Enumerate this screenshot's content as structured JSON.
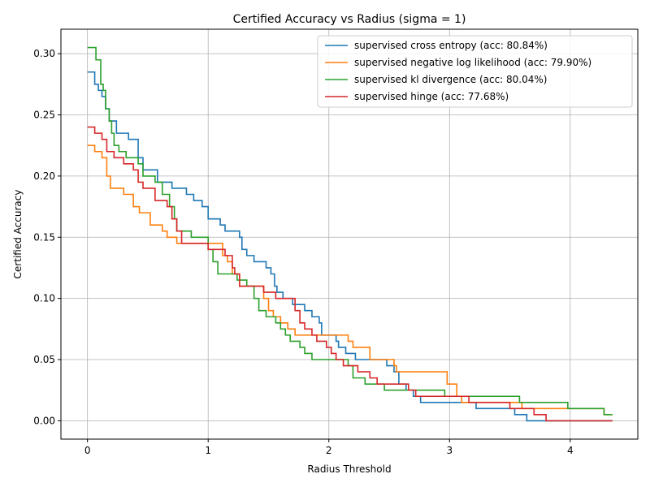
{
  "chart_data": {
    "type": "line",
    "title": "Certified Accuracy vs Radius (sigma = 1)",
    "xlabel": "Radius Threshold",
    "ylabel": "Certified Accuracy",
    "xlim": [
      -0.22,
      4.56
    ],
    "ylim": [
      -0.015,
      0.32
    ],
    "xticks": [
      0,
      1,
      2,
      3,
      4
    ],
    "xtick_labels": [
      "0",
      "1",
      "2",
      "3",
      "4"
    ],
    "yticks": [
      0.0,
      0.05,
      0.1,
      0.15,
      0.2,
      0.25,
      0.3
    ],
    "ytick_labels": [
      "0.00",
      "0.05",
      "0.10",
      "0.15",
      "0.20",
      "0.25",
      "0.30"
    ],
    "grid": true,
    "legend_position": "top-right",
    "series": [
      {
        "name": "supervised cross entropy (acc: 80.84%)",
        "color": "#1f77b4",
        "points": [
          [
            0,
            0.285
          ],
          [
            0.03,
            0.285
          ],
          [
            0.06,
            0.275
          ],
          [
            0.09,
            0.27
          ],
          [
            0.12,
            0.265
          ],
          [
            0.15,
            0.255
          ],
          [
            0.18,
            0.245
          ],
          [
            0.24,
            0.235
          ],
          [
            0.34,
            0.23
          ],
          [
            0.42,
            0.215
          ],
          [
            0.46,
            0.205
          ],
          [
            0.58,
            0.195
          ],
          [
            0.7,
            0.19
          ],
          [
            0.82,
            0.185
          ],
          [
            0.88,
            0.18
          ],
          [
            0.95,
            0.175
          ],
          [
            1.0,
            0.165
          ],
          [
            1.1,
            0.16
          ],
          [
            1.14,
            0.155
          ],
          [
            1.26,
            0.15
          ],
          [
            1.28,
            0.14
          ],
          [
            1.32,
            0.135
          ],
          [
            1.38,
            0.13
          ],
          [
            1.48,
            0.125
          ],
          [
            1.52,
            0.12
          ],
          [
            1.55,
            0.11
          ],
          [
            1.57,
            0.105
          ],
          [
            1.62,
            0.1
          ],
          [
            1.7,
            0.095
          ],
          [
            1.8,
            0.09
          ],
          [
            1.86,
            0.085
          ],
          [
            1.92,
            0.08
          ],
          [
            1.94,
            0.07
          ],
          [
            2.06,
            0.065
          ],
          [
            2.08,
            0.06
          ],
          [
            2.14,
            0.055
          ],
          [
            2.22,
            0.05
          ],
          [
            2.48,
            0.045
          ],
          [
            2.54,
            0.04
          ],
          [
            2.58,
            0.03
          ],
          [
            2.64,
            0.025
          ],
          [
            2.7,
            0.02
          ],
          [
            2.76,
            0.015
          ],
          [
            3.1,
            0.015
          ],
          [
            3.22,
            0.01
          ],
          [
            3.48,
            0.01
          ],
          [
            3.54,
            0.005
          ],
          [
            3.64,
            0.0
          ],
          [
            4.35,
            0.0
          ]
        ]
      },
      {
        "name": "supervised negative log likelihood (acc: 79.90%)",
        "color": "#ff7f0e",
        "points": [
          [
            0,
            0.225
          ],
          [
            0.06,
            0.22
          ],
          [
            0.12,
            0.215
          ],
          [
            0.16,
            0.2
          ],
          [
            0.19,
            0.19
          ],
          [
            0.3,
            0.185
          ],
          [
            0.38,
            0.175
          ],
          [
            0.43,
            0.17
          ],
          [
            0.52,
            0.16
          ],
          [
            0.62,
            0.155
          ],
          [
            0.66,
            0.15
          ],
          [
            0.74,
            0.145
          ],
          [
            0.98,
            0.145
          ],
          [
            1.12,
            0.135
          ],
          [
            1.16,
            0.13
          ],
          [
            1.2,
            0.12
          ],
          [
            1.26,
            0.11
          ],
          [
            1.46,
            0.1
          ],
          [
            1.5,
            0.09
          ],
          [
            1.54,
            0.085
          ],
          [
            1.6,
            0.08
          ],
          [
            1.66,
            0.075
          ],
          [
            1.72,
            0.07
          ],
          [
            2.12,
            0.07
          ],
          [
            2.16,
            0.065
          ],
          [
            2.2,
            0.06
          ],
          [
            2.34,
            0.05
          ],
          [
            2.54,
            0.045
          ],
          [
            2.56,
            0.04
          ],
          [
            2.94,
            0.04
          ],
          [
            2.98,
            0.03
          ],
          [
            3.06,
            0.02
          ],
          [
            3.1,
            0.015
          ],
          [
            3.56,
            0.015
          ],
          [
            3.6,
            0.01
          ],
          [
            4.26,
            0.01
          ],
          [
            4.28,
            0.005
          ],
          [
            4.35,
            0.005
          ]
        ]
      },
      {
        "name": "supervised kl divergence (acc: 80.04%)",
        "color": "#2ca02c",
        "points": [
          [
            0,
            0.305
          ],
          [
            0.05,
            0.305
          ],
          [
            0.07,
            0.295
          ],
          [
            0.11,
            0.275
          ],
          [
            0.13,
            0.27
          ],
          [
            0.15,
            0.255
          ],
          [
            0.18,
            0.245
          ],
          [
            0.2,
            0.235
          ],
          [
            0.22,
            0.225
          ],
          [
            0.26,
            0.22
          ],
          [
            0.32,
            0.215
          ],
          [
            0.42,
            0.21
          ],
          [
            0.46,
            0.2
          ],
          [
            0.56,
            0.195
          ],
          [
            0.62,
            0.185
          ],
          [
            0.68,
            0.175
          ],
          [
            0.72,
            0.165
          ],
          [
            0.74,
            0.155
          ],
          [
            0.86,
            0.15
          ],
          [
            1.0,
            0.14
          ],
          [
            1.04,
            0.13
          ],
          [
            1.08,
            0.12
          ],
          [
            1.24,
            0.115
          ],
          [
            1.32,
            0.11
          ],
          [
            1.38,
            0.1
          ],
          [
            1.42,
            0.09
          ],
          [
            1.48,
            0.085
          ],
          [
            1.56,
            0.08
          ],
          [
            1.6,
            0.075
          ],
          [
            1.64,
            0.07
          ],
          [
            1.68,
            0.065
          ],
          [
            1.76,
            0.06
          ],
          [
            1.8,
            0.055
          ],
          [
            1.86,
            0.05
          ],
          [
            2.16,
            0.045
          ],
          [
            2.2,
            0.035
          ],
          [
            2.3,
            0.03
          ],
          [
            2.46,
            0.025
          ],
          [
            2.96,
            0.02
          ],
          [
            3.58,
            0.015
          ],
          [
            3.98,
            0.01
          ],
          [
            4.28,
            0.005
          ],
          [
            4.35,
            0.005
          ]
        ]
      },
      {
        "name": "supervised hinge (acc: 77.68%)",
        "color": "#d62728",
        "points": [
          [
            0,
            0.24
          ],
          [
            0.06,
            0.235
          ],
          [
            0.12,
            0.23
          ],
          [
            0.16,
            0.22
          ],
          [
            0.22,
            0.215
          ],
          [
            0.3,
            0.21
          ],
          [
            0.38,
            0.205
          ],
          [
            0.42,
            0.195
          ],
          [
            0.46,
            0.19
          ],
          [
            0.56,
            0.18
          ],
          [
            0.66,
            0.175
          ],
          [
            0.7,
            0.165
          ],
          [
            0.74,
            0.155
          ],
          [
            0.78,
            0.145
          ],
          [
            1.0,
            0.14
          ],
          [
            1.14,
            0.135
          ],
          [
            1.2,
            0.125
          ],
          [
            1.22,
            0.12
          ],
          [
            1.26,
            0.11
          ],
          [
            1.46,
            0.105
          ],
          [
            1.56,
            0.1
          ],
          [
            1.72,
            0.09
          ],
          [
            1.76,
            0.08
          ],
          [
            1.8,
            0.075
          ],
          [
            1.86,
            0.07
          ],
          [
            1.9,
            0.065
          ],
          [
            1.98,
            0.06
          ],
          [
            2.02,
            0.055
          ],
          [
            2.06,
            0.05
          ],
          [
            2.12,
            0.045
          ],
          [
            2.24,
            0.04
          ],
          [
            2.34,
            0.035
          ],
          [
            2.4,
            0.03
          ],
          [
            2.66,
            0.025
          ],
          [
            2.72,
            0.02
          ],
          [
            3.16,
            0.015
          ],
          [
            3.5,
            0.01
          ],
          [
            3.7,
            0.005
          ],
          [
            3.8,
            0.0
          ],
          [
            4.35,
            0.0
          ]
        ]
      }
    ]
  }
}
